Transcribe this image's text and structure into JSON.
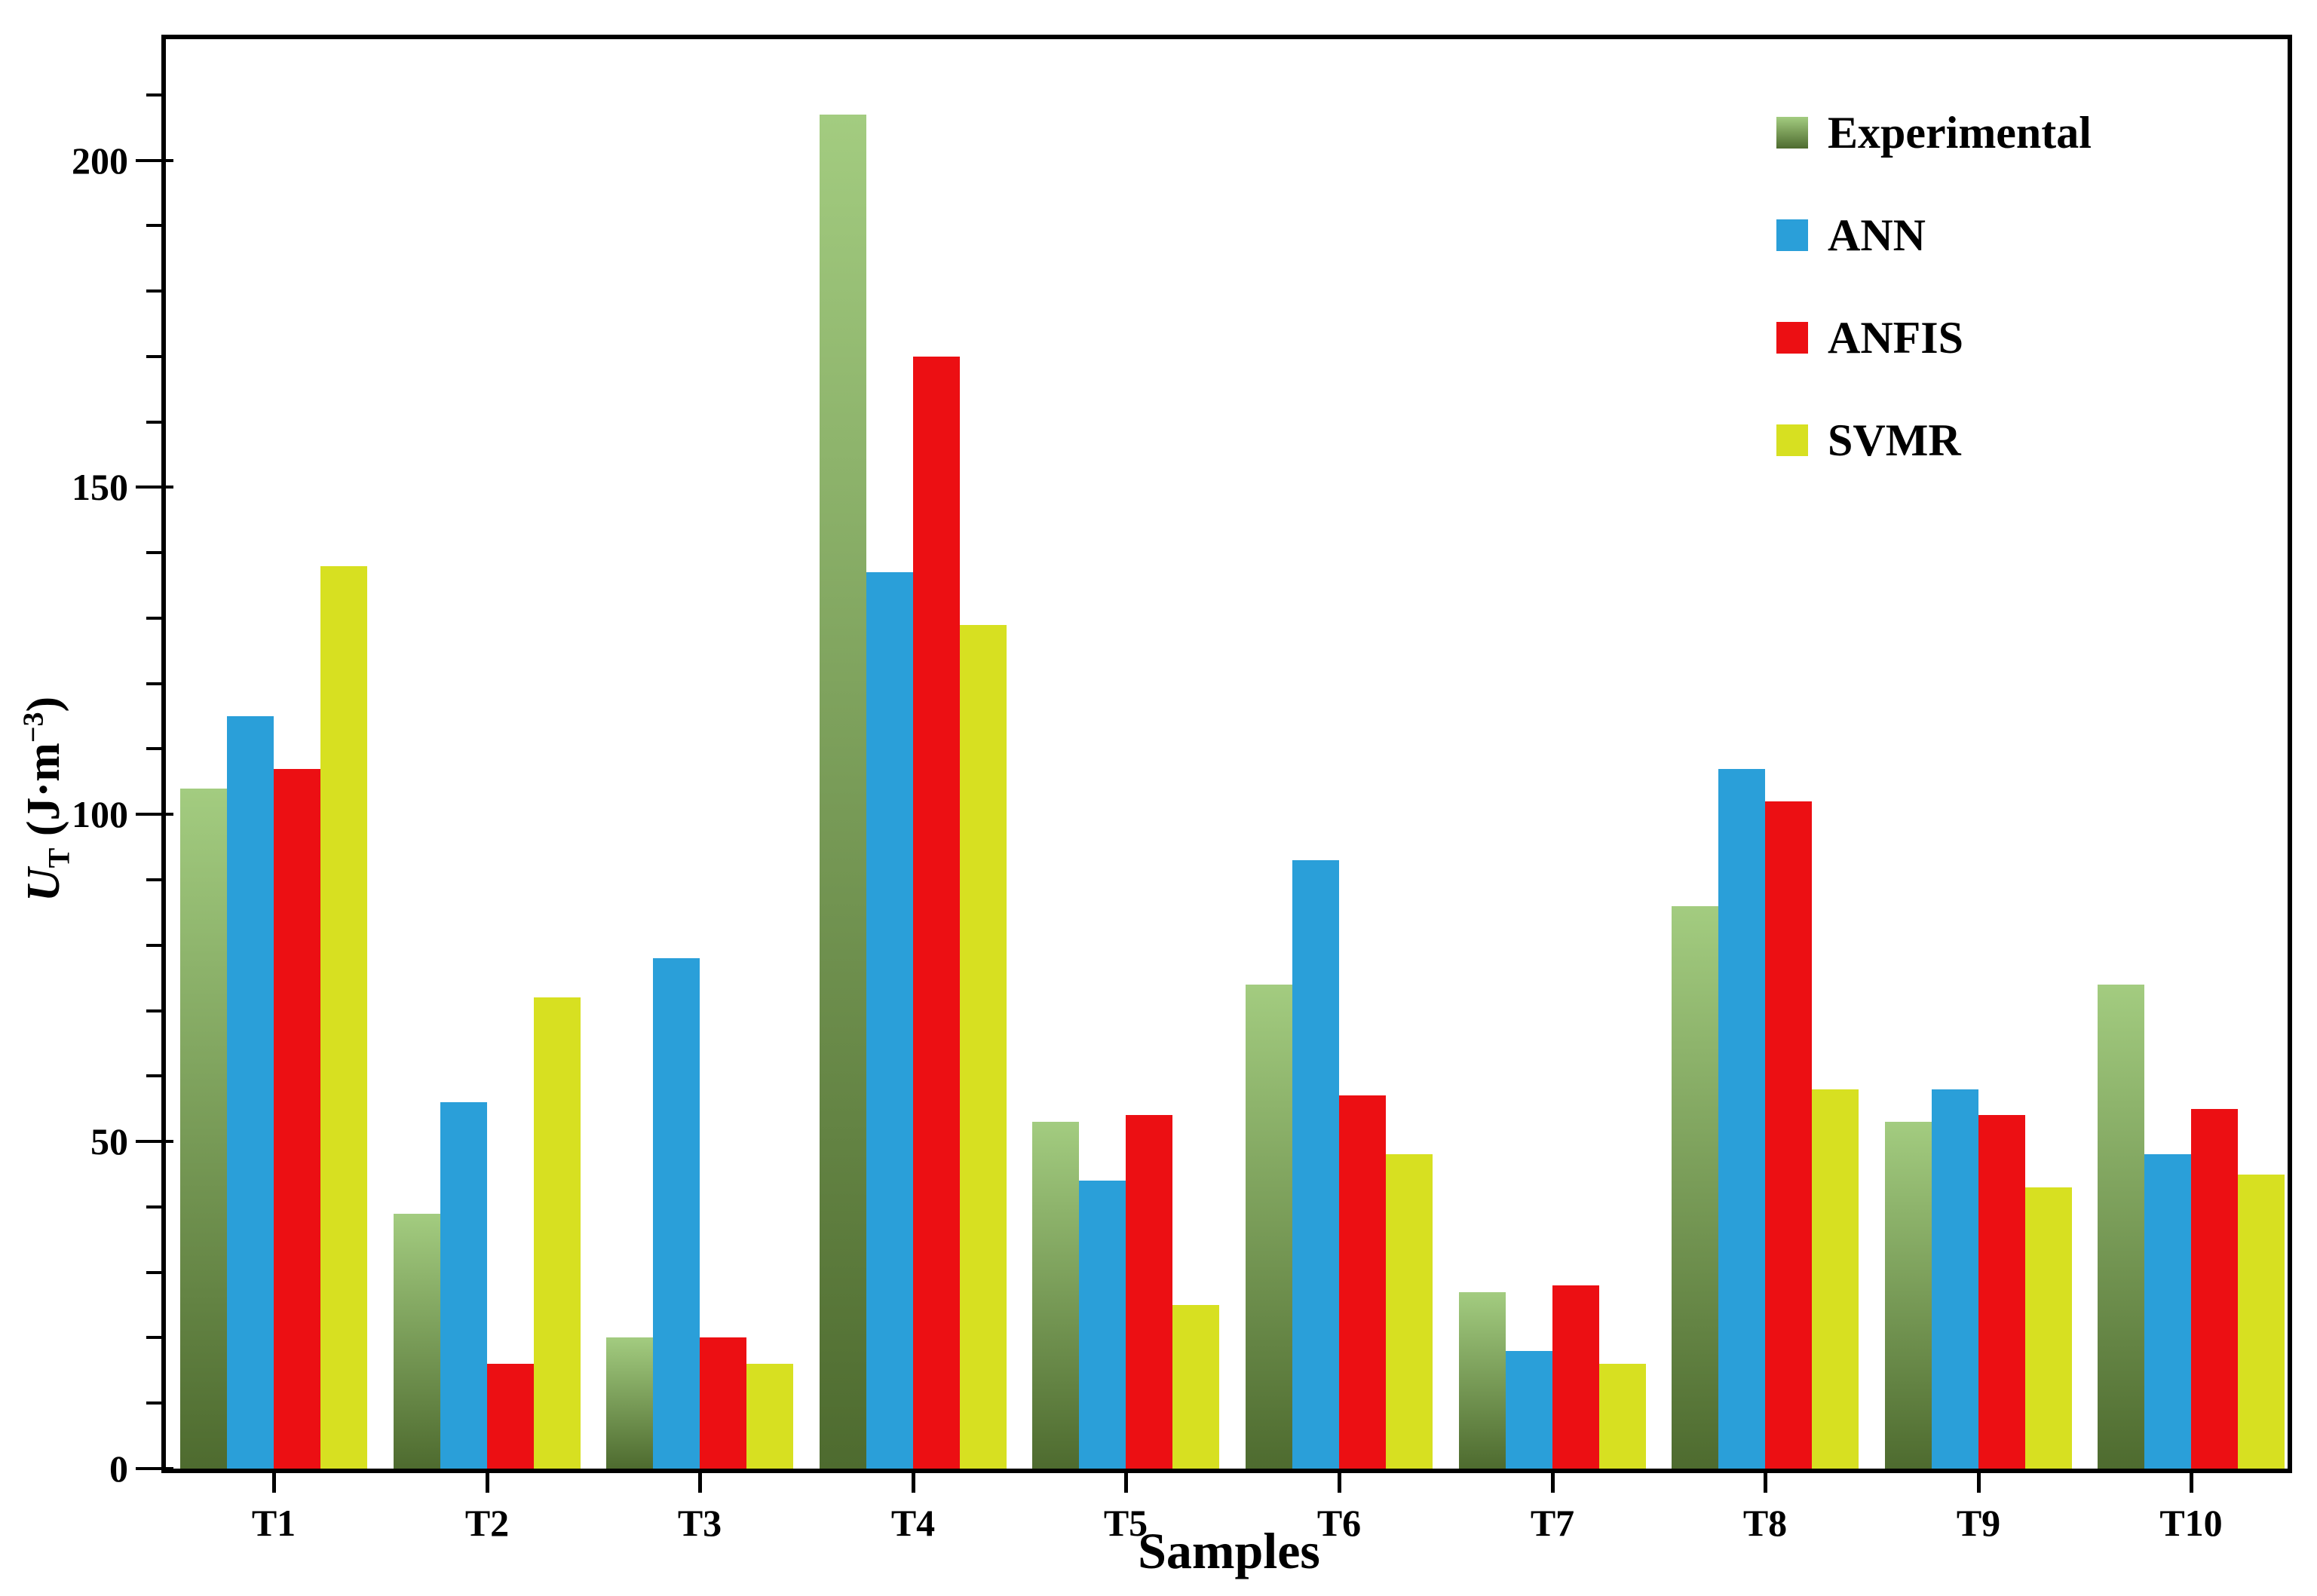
{
  "chart_data": {
    "type": "bar",
    "title": "",
    "xlabel": "Samples",
    "ylabel": "U_T (J·m−3)",
    "ylabel_parts": {
      "u": "U",
      "sub": "T",
      "mid": " (J·m",
      "sup": "−3",
      "post": ")"
    },
    "categories": [
      "T1",
      "T2",
      "T3",
      "T4",
      "T5",
      "T6",
      "T7",
      "T8",
      "T9",
      "T10"
    ],
    "series": [
      {
        "name": "Experimental",
        "color_top": "#a3cc80",
        "color_bottom": "#4e6b2f",
        "values": [
          104,
          39,
          20,
          207,
          53,
          74,
          27,
          86,
          53,
          74
        ]
      },
      {
        "name": "ANN",
        "color": "#2a9fd9",
        "values": [
          115,
          56,
          78,
          137,
          44,
          93,
          18,
          107,
          58,
          48
        ]
      },
      {
        "name": "ANFIS",
        "color": "#ec0f13",
        "values": [
          107,
          16,
          20,
          170,
          54,
          57,
          28,
          102,
          54,
          55
        ]
      },
      {
        "name": "SVMR",
        "color": "#d7e021",
        "values": [
          138,
          72,
          16,
          129,
          25,
          48,
          16,
          58,
          43,
          45
        ]
      }
    ],
    "ylim": [
      0,
      218.5
    ],
    "yticks_major": [
      0,
      50,
      100,
      150,
      200
    ],
    "ytick_minor_step": 10,
    "grid": false,
    "legend_position": "top-right",
    "axis_color": "#000000",
    "background_color": "#ffffff"
  }
}
